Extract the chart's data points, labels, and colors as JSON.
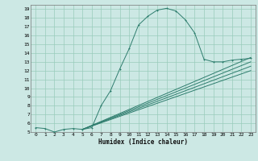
{
  "xlabel": "Humidex (Indice chaleur)",
  "ylabel": "",
  "bg_color": "#cce8e4",
  "line_color": "#2e7d6e",
  "grid_color": "#99ccbb",
  "xlim": [
    -0.5,
    23.5
  ],
  "ylim": [
    5,
    19.5
  ],
  "xticks": [
    0,
    1,
    2,
    3,
    4,
    5,
    6,
    7,
    8,
    9,
    10,
    11,
    12,
    13,
    14,
    15,
    16,
    17,
    18,
    19,
    20,
    21,
    22,
    23
  ],
  "yticks": [
    5,
    6,
    7,
    8,
    9,
    10,
    11,
    12,
    13,
    14,
    15,
    16,
    17,
    18,
    19
  ],
  "curve1_x": [
    0,
    1,
    2,
    3,
    4,
    5,
    6,
    7,
    8,
    9,
    10,
    11,
    12,
    13,
    14,
    15,
    16,
    17,
    18,
    19,
    20,
    21,
    22,
    23
  ],
  "curve1_y": [
    5.5,
    5.4,
    5.0,
    5.3,
    5.4,
    5.3,
    5.5,
    8.0,
    9.7,
    12.2,
    14.5,
    17.2,
    18.2,
    18.9,
    19.1,
    18.8,
    17.8,
    16.3,
    13.3,
    13.0,
    13.0,
    13.2,
    13.3,
    13.4
  ],
  "straight_lines": [
    {
      "x": [
        5,
        23
      ],
      "y": [
        5.3,
        13.5
      ]
    },
    {
      "x": [
        5,
        23
      ],
      "y": [
        5.3,
        13.0
      ]
    },
    {
      "x": [
        5,
        23
      ],
      "y": [
        5.3,
        12.5
      ]
    },
    {
      "x": [
        5,
        23
      ],
      "y": [
        5.3,
        12.0
      ]
    }
  ]
}
